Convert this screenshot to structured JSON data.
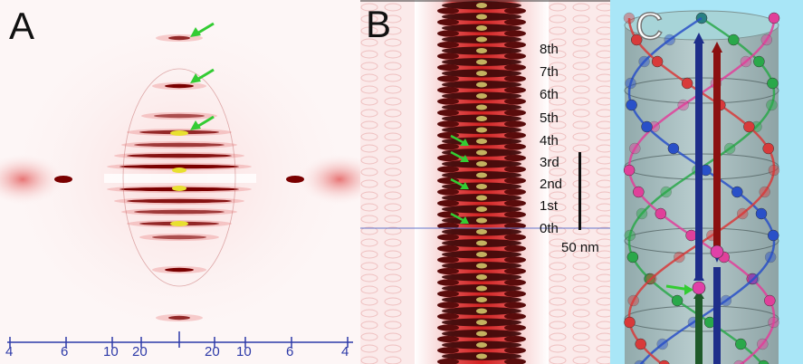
{
  "panels": {
    "a": {
      "label": "A",
      "axis_ticks": [
        "4",
        "6",
        "10",
        "20",
        "20",
        "10",
        "6",
        "4"
      ]
    },
    "b": {
      "label": "B",
      "orders": [
        "8th",
        "7th",
        "6th",
        "5th",
        "4th",
        "3rd",
        "2nd",
        "1st",
        "0th"
      ],
      "scale_bar": "50 nm"
    },
    "c": {
      "label": "C"
    }
  },
  "colors": {
    "axis": "#2d3aa8",
    "arrow": "#33cc33",
    "dark_red": "#7a0000",
    "strand_green": "#2aa84a",
    "strand_magenta": "#e0409a",
    "strand_blue": "#2950c8",
    "strand_red": "#d83a3a"
  }
}
